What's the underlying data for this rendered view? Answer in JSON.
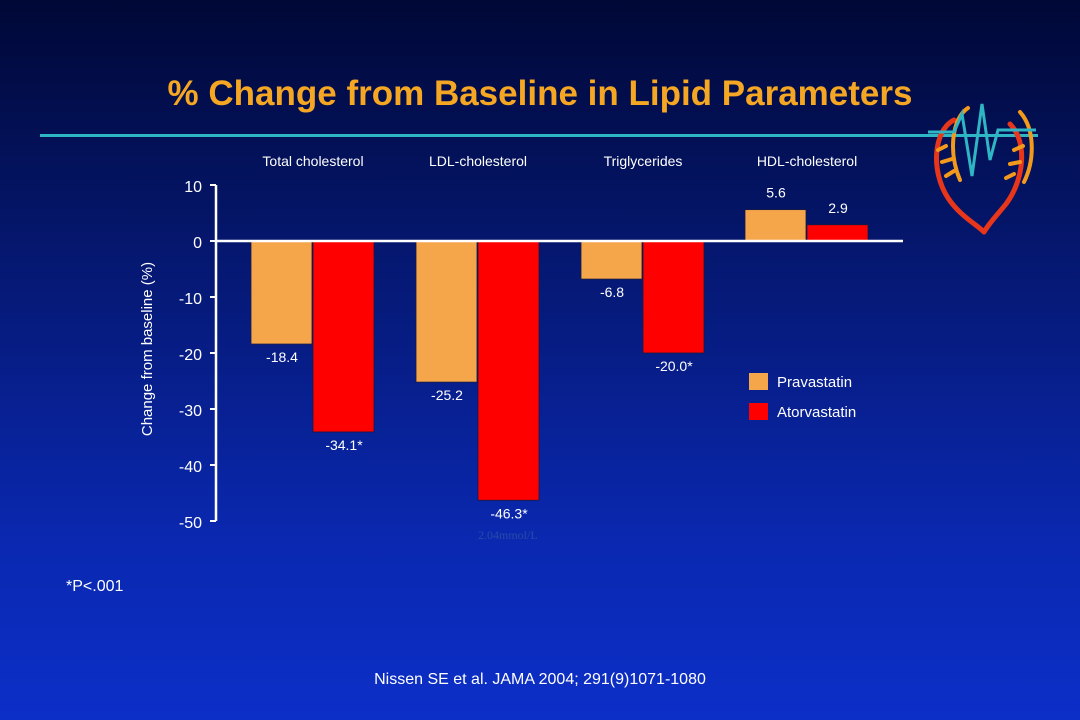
{
  "slide": {
    "title": "% Change from Baseline in Lipid Parameters",
    "footnote": "*P<.001",
    "citation": "Nissen SE et al. JAMA 2004; 291(9)1071-1080",
    "watermark": "2.04mmol/L"
  },
  "colors": {
    "title": "#f5a623",
    "rule": "#2fb6c4",
    "pravastatin": "#f5a64b",
    "atorvastatin": "#ff0000"
  },
  "chart_data": {
    "type": "bar",
    "categories": [
      "Total cholesterol",
      "LDL-cholesterol",
      "Triglycerides",
      "HDL-cholesterol"
    ],
    "series": [
      {
        "name": "Pravastatin",
        "values": [
          -18.4,
          -25.2,
          -6.8,
          5.6
        ],
        "labels": [
          "-18.4",
          "-25.2",
          "-6.8",
          "5.6"
        ]
      },
      {
        "name": "Atorvastatin",
        "values": [
          -34.1,
          -46.3,
          -20.0,
          2.9
        ],
        "labels": [
          "-34.1*",
          "-46.3*",
          "-20.0*",
          "2.9"
        ]
      }
    ],
    "ylabel": "Change from baseline (%)",
    "xlabel": "",
    "ylim": [
      -50,
      10
    ],
    "yticks": [
      10,
      0,
      -10,
      -20,
      -30,
      -40,
      -50
    ],
    "legend_position": "right"
  }
}
